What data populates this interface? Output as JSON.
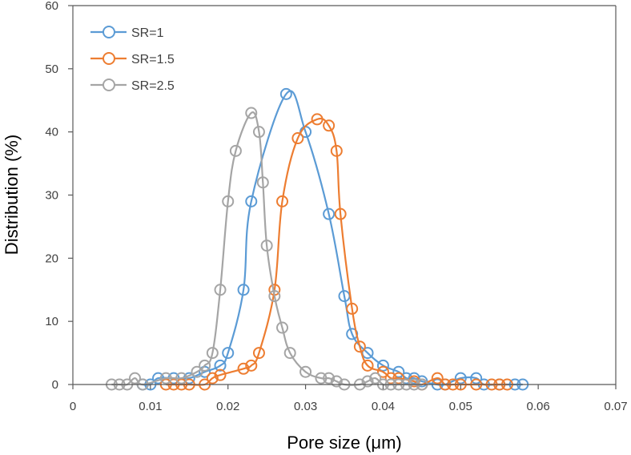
{
  "chart_data": {
    "type": "scatter",
    "title": "",
    "xlabel": "Pore size (μm)",
    "ylabel": "Distribution (%)",
    "xlim": [
      0,
      0.07
    ],
    "ylim": [
      0,
      60
    ],
    "x_ticks": [
      "0",
      "0.01",
      "0.02",
      "0.03",
      "0.04",
      "0.05",
      "0.06",
      "0.07"
    ],
    "y_ticks": [
      "0",
      "10",
      "20",
      "30",
      "40",
      "50",
      "60"
    ],
    "grid": false,
    "legend_position": "top-left",
    "marker": "open-circle",
    "line": "smooth",
    "series": [
      {
        "name": "SR=1",
        "color": "#5B9BD5",
        "points": [
          [
            0.009,
            0
          ],
          [
            0.01,
            0
          ],
          [
            0.011,
            1
          ],
          [
            0.013,
            1
          ],
          [
            0.015,
            1
          ],
          [
            0.017,
            2
          ],
          [
            0.019,
            3
          ],
          [
            0.02,
            5
          ],
          [
            0.022,
            15
          ],
          [
            0.023,
            29
          ],
          [
            0.0275,
            46
          ],
          [
            0.03,
            40
          ],
          [
            0.033,
            27
          ],
          [
            0.035,
            14
          ],
          [
            0.036,
            8
          ],
          [
            0.038,
            5
          ],
          [
            0.04,
            3
          ],
          [
            0.042,
            2
          ],
          [
            0.043,
            1
          ],
          [
            0.044,
            1
          ],
          [
            0.045,
            0.5
          ],
          [
            0.047,
            0
          ],
          [
            0.048,
            0
          ],
          [
            0.05,
            1
          ],
          [
            0.052,
            1
          ],
          [
            0.053,
            0
          ],
          [
            0.055,
            0
          ],
          [
            0.057,
            0
          ],
          [
            0.058,
            0
          ]
        ]
      },
      {
        "name": "SR=1.5",
        "color": "#ED7D31",
        "points": [
          [
            0.012,
            0
          ],
          [
            0.013,
            0
          ],
          [
            0.014,
            0
          ],
          [
            0.015,
            0
          ],
          [
            0.017,
            0
          ],
          [
            0.018,
            1
          ],
          [
            0.019,
            1.5
          ],
          [
            0.022,
            2.5
          ],
          [
            0.023,
            3
          ],
          [
            0.024,
            5
          ],
          [
            0.026,
            15
          ],
          [
            0.027,
            29
          ],
          [
            0.029,
            39
          ],
          [
            0.0315,
            42
          ],
          [
            0.033,
            41
          ],
          [
            0.034,
            37
          ],
          [
            0.0345,
            27
          ],
          [
            0.036,
            12
          ],
          [
            0.037,
            6
          ],
          [
            0.038,
            3
          ],
          [
            0.04,
            2
          ],
          [
            0.041,
            1
          ],
          [
            0.042,
            1
          ],
          [
            0.044,
            0.5
          ],
          [
            0.045,
            0
          ],
          [
            0.047,
            1
          ],
          [
            0.048,
            0
          ],
          [
            0.049,
            0
          ],
          [
            0.05,
            0
          ],
          [
            0.052,
            0
          ],
          [
            0.054,
            0
          ],
          [
            0.055,
            0
          ],
          [
            0.056,
            0
          ]
        ]
      },
      {
        "name": "SR=2.5",
        "color": "#A5A5A5",
        "points": [
          [
            0.005,
            0
          ],
          [
            0.006,
            0
          ],
          [
            0.007,
            0
          ],
          [
            0.008,
            1
          ],
          [
            0.009,
            0
          ],
          [
            0.012,
            1
          ],
          [
            0.014,
            1
          ],
          [
            0.016,
            2
          ],
          [
            0.017,
            3
          ],
          [
            0.018,
            5
          ],
          [
            0.019,
            15
          ],
          [
            0.02,
            29
          ],
          [
            0.021,
            37
          ],
          [
            0.023,
            43
          ],
          [
            0.024,
            40
          ],
          [
            0.0245,
            32
          ],
          [
            0.025,
            22
          ],
          [
            0.026,
            14
          ],
          [
            0.027,
            9
          ],
          [
            0.028,
            5
          ],
          [
            0.03,
            2
          ],
          [
            0.032,
            1
          ],
          [
            0.033,
            1
          ],
          [
            0.034,
            0.5
          ],
          [
            0.035,
            0
          ],
          [
            0.037,
            0
          ],
          [
            0.038,
            0.5
          ],
          [
            0.039,
            1
          ],
          [
            0.04,
            0
          ],
          [
            0.041,
            0
          ],
          [
            0.042,
            0
          ],
          [
            0.043,
            0
          ],
          [
            0.044,
            0
          ],
          [
            0.045,
            0
          ]
        ]
      }
    ]
  },
  "legend": {
    "items": [
      {
        "label": "SR=1",
        "color": "#5B9BD5"
      },
      {
        "label": "SR=1.5",
        "color": "#ED7D31"
      },
      {
        "label": "SR=2.5",
        "color": "#A5A5A5"
      }
    ]
  },
  "axes": {
    "x_title": "Pore size (μm)",
    "y_title": "Distribution (%)"
  }
}
